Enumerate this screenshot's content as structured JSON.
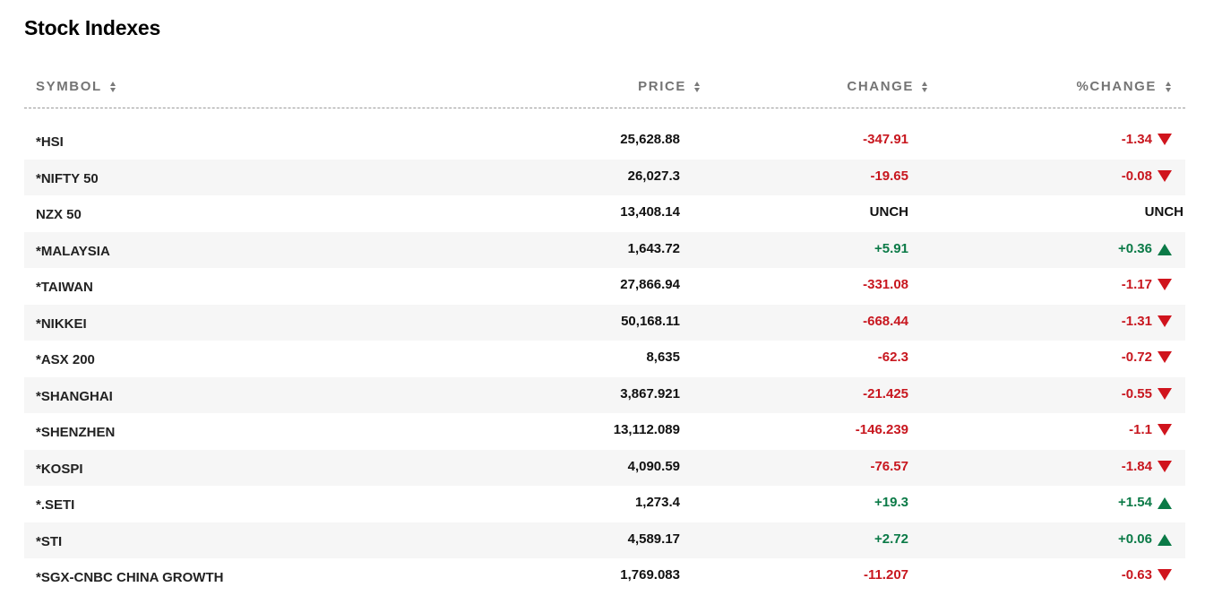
{
  "title": "Stock Indexes",
  "colors": {
    "negative": "#c8171f",
    "positive": "#0b7a47",
    "arrow_down": "#d0141d",
    "arrow_up": "#0b7a47",
    "header_text": "#747474",
    "row_alt_bg": "#f6f6f6"
  },
  "columns": {
    "symbol": "SYMBOL",
    "price": "PRICE",
    "change": "CHANGE",
    "pct_change": "%CHANGE",
    "sort_icon": "sort-icon"
  },
  "rows": [
    {
      "symbol": "*HSI",
      "price": "25,628.88",
      "change": "-347.91",
      "pct": "-1.34",
      "dir": "down"
    },
    {
      "symbol": "*NIFTY 50",
      "price": "26,027.3",
      "change": "-19.65",
      "pct": "-0.08",
      "dir": "down"
    },
    {
      "symbol": "NZX 50",
      "price": "13,408.14",
      "change": "UNCH",
      "pct": "UNCH",
      "dir": "flat"
    },
    {
      "symbol": "*MALAYSIA",
      "price": "1,643.72",
      "change": "+5.91",
      "pct": "+0.36",
      "dir": "up"
    },
    {
      "symbol": "*TAIWAN",
      "price": "27,866.94",
      "change": "-331.08",
      "pct": "-1.17",
      "dir": "down"
    },
    {
      "symbol": "*NIKKEI",
      "price": "50,168.11",
      "change": "-668.44",
      "pct": "-1.31",
      "dir": "down"
    },
    {
      "symbol": "*ASX 200",
      "price": "8,635",
      "change": "-62.3",
      "pct": "-0.72",
      "dir": "down"
    },
    {
      "symbol": "*SHANGHAI",
      "price": "3,867.921",
      "change": "-21.425",
      "pct": "-0.55",
      "dir": "down"
    },
    {
      "symbol": "*SHENZHEN",
      "price": "13,112.089",
      "change": "-146.239",
      "pct": "-1.1",
      "dir": "down"
    },
    {
      "symbol": "*KOSPI",
      "price": "4,090.59",
      "change": "-76.57",
      "pct": "-1.84",
      "dir": "down"
    },
    {
      "symbol": "*.SETI",
      "price": "1,273.4",
      "change": "+19.3",
      "pct": "+1.54",
      "dir": "up"
    },
    {
      "symbol": "*STI",
      "price": "4,589.17",
      "change": "+2.72",
      "pct": "+0.06",
      "dir": "up"
    },
    {
      "symbol": "*SGX-CNBC CHINA GROWTH",
      "price": "1,769.083",
      "change": "-11.207",
      "pct": "-0.63",
      "dir": "down"
    }
  ]
}
